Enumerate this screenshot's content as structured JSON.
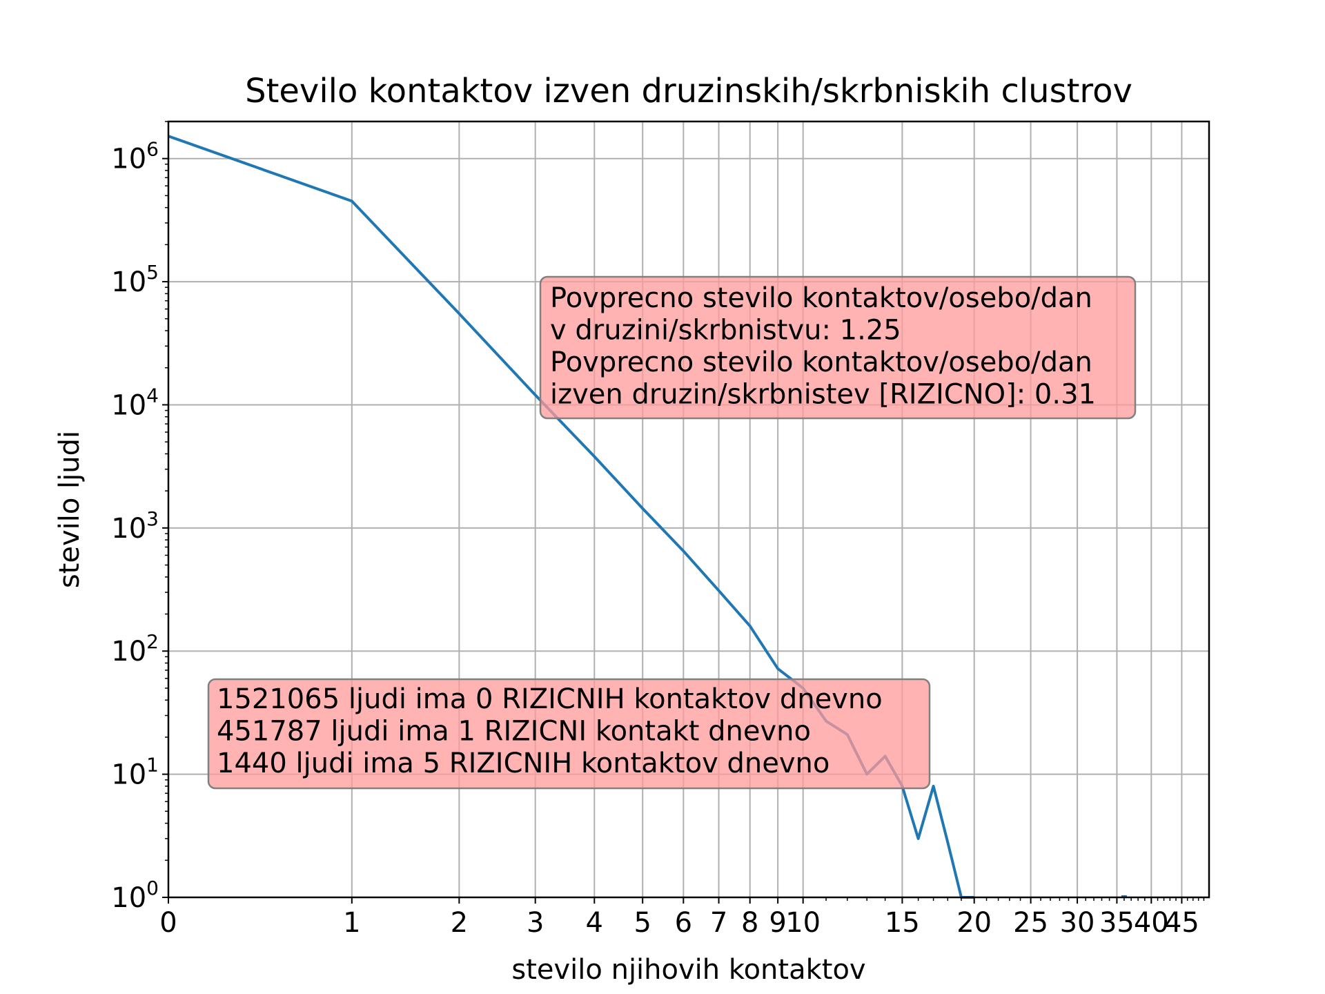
{
  "chart_data": {
    "type": "line",
    "title": "Stevilo kontaktov izven druzinskih/skrbniskih clustrov",
    "xlabel": "stevilo njihovih kontaktov",
    "ylabel": "stevilo ljudi",
    "x_scale": "symlog",
    "y_scale": "log",
    "xlim": [
      0,
      50
    ],
    "ylim": [
      1,
      2000000
    ],
    "grid": true,
    "x_ticks": [
      0,
      1,
      2,
      3,
      4,
      5,
      6,
      7,
      8,
      9,
      10,
      15,
      20,
      25,
      30,
      35,
      40,
      45
    ],
    "x_tick_labels": [
      "0",
      "1",
      "2",
      "3",
      "4",
      "5",
      "6",
      "7",
      "8",
      "9",
      "10",
      "15",
      "20",
      "25",
      "30",
      "35",
      "40",
      "45"
    ],
    "y_ticks": [
      1,
      10,
      100,
      1000,
      10000,
      100000,
      1000000
    ],
    "y_tick_exponents": [
      "0",
      "1",
      "2",
      "3",
      "4",
      "5",
      "6"
    ],
    "y_tick_base": "10",
    "series": [
      {
        "color": "#1f77b4",
        "x": [
          0,
          1,
          2,
          3,
          4,
          5,
          6,
          7,
          8,
          9,
          10,
          11,
          12,
          13,
          14,
          15,
          16,
          17,
          18,
          19,
          20
        ],
        "y": [
          1521065,
          451787,
          55000,
          12000,
          3800,
          1440,
          650,
          310,
          160,
          72,
          50,
          27,
          21,
          10,
          14,
          8,
          3,
          8,
          2.8,
          1,
          1
        ]
      }
    ],
    "annotations": [
      {
        "lines": [
          "Povprecno stevilo kontaktov/osebo/dan",
          "v druzini/skrbnistvu: 1.25",
          "Povprecno stevilo kontaktov/osebo/dan",
          "izven druzin/skrbnistev [RIZICNO]: 0.31"
        ],
        "placement": "upper-right",
        "background": "#ff9999"
      },
      {
        "lines": [
          "1521065 ljudi ima 0 RIZICNIH kontaktov dnevno",
          "451787 ljudi ima 1 RIZICNI kontakt dnevno",
          "1440 ljudi ima 5 RIZICNIH kontaktov dnevno"
        ],
        "placement": "lower-left",
        "background": "#ff9999"
      }
    ]
  }
}
